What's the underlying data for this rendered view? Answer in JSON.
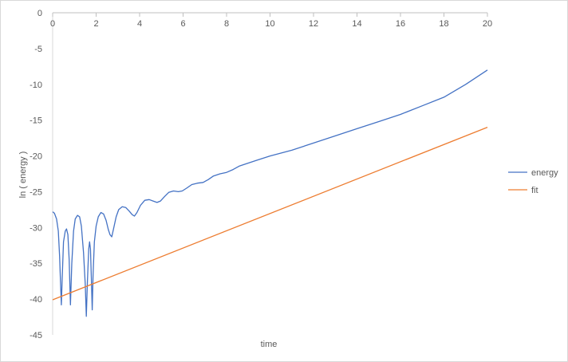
{
  "chart_data": {
    "type": "line",
    "title": "",
    "xlabel": "time",
    "ylabel": "ln ( energy )",
    "xlim": [
      0,
      20
    ],
    "ylim": [
      -45,
      0
    ],
    "x_ticks": [
      0,
      2,
      4,
      6,
      8,
      10,
      12,
      14,
      16,
      18,
      20
    ],
    "y_ticks": [
      0,
      -5,
      -10,
      -15,
      -20,
      -25,
      -30,
      -35,
      -40,
      -45
    ],
    "grid": false,
    "legend_position": "right",
    "series": [
      {
        "name": "energy",
        "color": "#4472c4",
        "points": [
          [
            0.0,
            -27.8
          ],
          [
            0.08,
            -28.0
          ],
          [
            0.18,
            -28.8
          ],
          [
            0.26,
            -30.5
          ],
          [
            0.32,
            -34.0
          ],
          [
            0.36,
            -37.5
          ],
          [
            0.4,
            -40.8
          ],
          [
            0.44,
            -37.0
          ],
          [
            0.5,
            -32.0
          ],
          [
            0.58,
            -30.5
          ],
          [
            0.64,
            -30.2
          ],
          [
            0.7,
            -31.0
          ],
          [
            0.76,
            -34.5
          ],
          [
            0.82,
            -40.8
          ],
          [
            0.88,
            -35.0
          ],
          [
            0.96,
            -30.5
          ],
          [
            1.04,
            -28.8
          ],
          [
            1.14,
            -28.3
          ],
          [
            1.24,
            -28.5
          ],
          [
            1.32,
            -29.8
          ],
          [
            1.42,
            -33.5
          ],
          [
            1.5,
            -38.0
          ],
          [
            1.55,
            -42.4
          ],
          [
            1.6,
            -37.5
          ],
          [
            1.66,
            -33.0
          ],
          [
            1.7,
            -32.0
          ],
          [
            1.74,
            -33.0
          ],
          [
            1.78,
            -37.0
          ],
          [
            1.82,
            -41.5
          ],
          [
            1.86,
            -36.5
          ],
          [
            1.92,
            -32.0
          ],
          [
            2.0,
            -29.8
          ],
          [
            2.1,
            -28.5
          ],
          [
            2.22,
            -27.9
          ],
          [
            2.34,
            -28.1
          ],
          [
            2.46,
            -29.0
          ],
          [
            2.56,
            -30.3
          ],
          [
            2.64,
            -31.0
          ],
          [
            2.72,
            -31.3
          ],
          [
            2.8,
            -30.2
          ],
          [
            2.92,
            -28.5
          ],
          [
            3.04,
            -27.5
          ],
          [
            3.2,
            -27.1
          ],
          [
            3.36,
            -27.2
          ],
          [
            3.52,
            -27.7
          ],
          [
            3.66,
            -28.2
          ],
          [
            3.76,
            -28.4
          ],
          [
            3.88,
            -27.9
          ],
          [
            4.04,
            -26.9
          ],
          [
            4.24,
            -26.2
          ],
          [
            4.44,
            -26.1
          ],
          [
            4.62,
            -26.3
          ],
          [
            4.8,
            -26.5
          ],
          [
            4.96,
            -26.3
          ],
          [
            5.14,
            -25.7
          ],
          [
            5.34,
            -25.1
          ],
          [
            5.56,
            -24.9
          ],
          [
            5.78,
            -25.0
          ],
          [
            5.96,
            -24.9
          ],
          [
            6.16,
            -24.5
          ],
          [
            6.4,
            -24.0
          ],
          [
            6.66,
            -23.8
          ],
          [
            6.92,
            -23.7
          ],
          [
            7.16,
            -23.3
          ],
          [
            7.4,
            -22.8
          ],
          [
            7.7,
            -22.5
          ],
          [
            8.0,
            -22.3
          ],
          [
            8.3,
            -21.9
          ],
          [
            8.6,
            -21.4
          ],
          [
            9.0,
            -21.0
          ],
          [
            9.4,
            -20.6
          ],
          [
            10.0,
            -20.0
          ],
          [
            11.0,
            -19.2
          ],
          [
            12.0,
            -18.2
          ],
          [
            13.0,
            -17.2
          ],
          [
            14.0,
            -16.2
          ],
          [
            15.0,
            -15.2
          ],
          [
            16.0,
            -14.2
          ],
          [
            17.0,
            -13.0
          ],
          [
            18.0,
            -11.8
          ],
          [
            19.0,
            -10.0
          ],
          [
            20.0,
            -8.0
          ]
        ]
      },
      {
        "name": "fit",
        "color": "#ed7d31",
        "points": [
          [
            0,
            -40.1
          ],
          [
            20,
            -16.0
          ]
        ]
      }
    ]
  }
}
